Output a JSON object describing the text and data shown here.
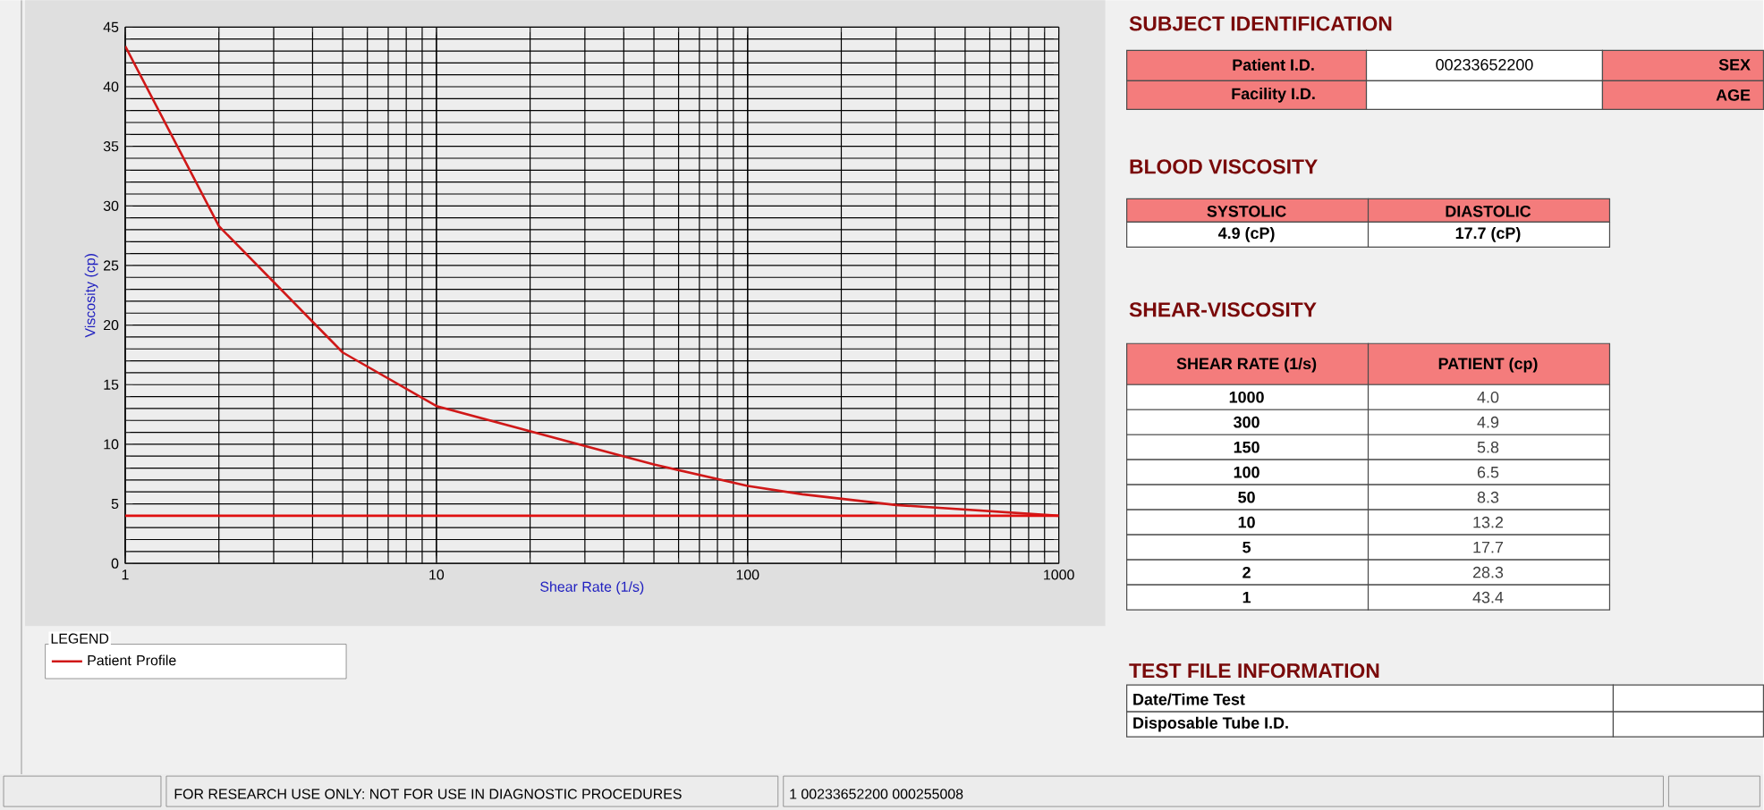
{
  "chart_data": {
    "type": "line",
    "xlabel": "Shear Rate (1/s)",
    "ylabel": "Viscosity (cp)",
    "legend_title": "LEGEND",
    "series": [
      {
        "name": "Patient Profile",
        "color": "#d01818",
        "x": [
          1000,
          300,
          150,
          100,
          50,
          10,
          5,
          2,
          1
        ],
        "values": [
          4.0,
          4.9,
          5.8,
          6.5,
          8.3,
          13.2,
          17.7,
          28.3,
          43.4
        ]
      }
    ],
    "log": "x",
    "xlim": [
      1,
      1000
    ],
    "xticks": [
      1,
      10,
      100,
      1000
    ],
    "ylim": [
      0,
      45
    ],
    "yticks": [
      0,
      5,
      10,
      15,
      20,
      25,
      30,
      35,
      40,
      45
    ],
    "grid": true,
    "legend": "bottom left",
    "marker": "none",
    "line_style": "solid",
    "ref_lines": [
      {
        "axis": "y",
        "value": 4,
        "color": "#e01010"
      }
    ],
    "annotations": [
      "SUBJECT IDENTIFICATION",
      "Patient I.D.",
      "00233652200",
      "SEX",
      "Facility I.D.",
      "AGE",
      "BLOOD VISCOSITY",
      "SYSTOLIC",
      "DIASTOLIC",
      "4.9 (cP)",
      "17.7 (cP)",
      "SHEAR-VISCOSITY",
      "SHEAR RATE (1/s)",
      "PATIENT (cp)",
      "TEST FILE INFORMATION",
      "Date/Time Test",
      "Disposable Tube I.D.",
      "FOR RESEARCH USE ONLY: NOT FOR USE IN DIAGNOSTIC PROCEDURES",
      "1  00233652200  000255008",
      "1000",
      "300",
      "150",
      "100",
      "50",
      "10",
      "5",
      "2",
      "1",
      "4.0",
      "4.9",
      "5.8",
      "6.5",
      "8.3",
      "13.2",
      "17.7",
      "28.3",
      "43.4"
    ]
  }
}
